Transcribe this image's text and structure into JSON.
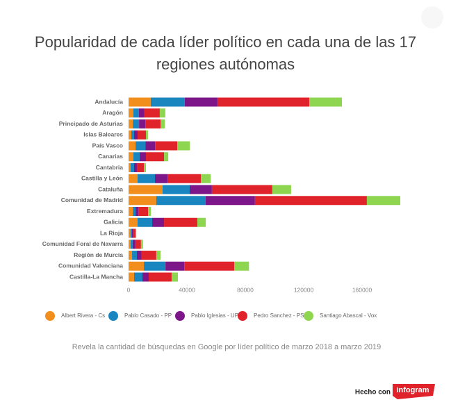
{
  "chart_data": {
    "type": "bar",
    "orientation": "horizontal",
    "stacked": true,
    "title": "Popularidad de cada líder político en cada una de las 17 regiones autónomas",
    "subtitle": "Revela la cantidad de búsquedas en Google por líder político de marzo 2018 a marzo 2019",
    "credit": "Hecho con",
    "brand": "infogram",
    "categories": [
      "Andalucía",
      "Aragón",
      "Principado de Asturias",
      "Islas Baleares",
      "País Vasco",
      "Canarias",
      "Cantabria",
      "Castilla y León",
      "Cataluña",
      "Comunidad de Madrid",
      "Extremadura",
      "Galicia",
      "La Rioja",
      "Comunidad Foral de Navarra",
      "Región de Murcia",
      "Comunidad Valenciana",
      "Castilla-La Mancha"
    ],
    "series": [
      {
        "name": "Albert Rivera - Cs",
        "color": "#f28e1c",
        "values": [
          15200,
          3300,
          2900,
          1900,
          4800,
          3300,
          1400,
          6200,
          23300,
          19000,
          2900,
          6200,
          1400,
          1400,
          2400,
          10500,
          3800
        ]
      },
      {
        "name": "Pablo Casado - PP",
        "color": "#1a86c0",
        "values": [
          23300,
          3800,
          4300,
          1900,
          6700,
          4300,
          2400,
          11900,
          18600,
          33800,
          1900,
          10000,
          1000,
          1400,
          3300,
          14800,
          5700
        ]
      },
      {
        "name": "Pablo Iglesias - UP",
        "color": "#7d1689",
        "values": [
          22400,
          3800,
          4300,
          2400,
          6700,
          4300,
          1900,
          8600,
          15200,
          33800,
          1900,
          8100,
          1000,
          1900,
          3300,
          12900,
          4300
        ]
      },
      {
        "name": "Pedro Sanchez - PSOE",
        "color": "#e0232a",
        "values": [
          62900,
          10500,
          10500,
          5700,
          15200,
          12400,
          4800,
          22900,
          41400,
          76700,
          6700,
          22900,
          1400,
          3800,
          10000,
          34300,
          15700
        ]
      },
      {
        "name": "Santiago Abascal - Vox",
        "color": "#8ed650",
        "values": [
          22400,
          3800,
          2900,
          1400,
          8600,
          2900,
          1400,
          6700,
          12900,
          22900,
          1900,
          5700,
          500,
          1400,
          2900,
          10000,
          4300
        ]
      }
    ],
    "xlim": [
      0,
      190000
    ],
    "xticks": [
      0,
      40000,
      80000,
      120000,
      160000
    ],
    "legend": "bottom"
  }
}
